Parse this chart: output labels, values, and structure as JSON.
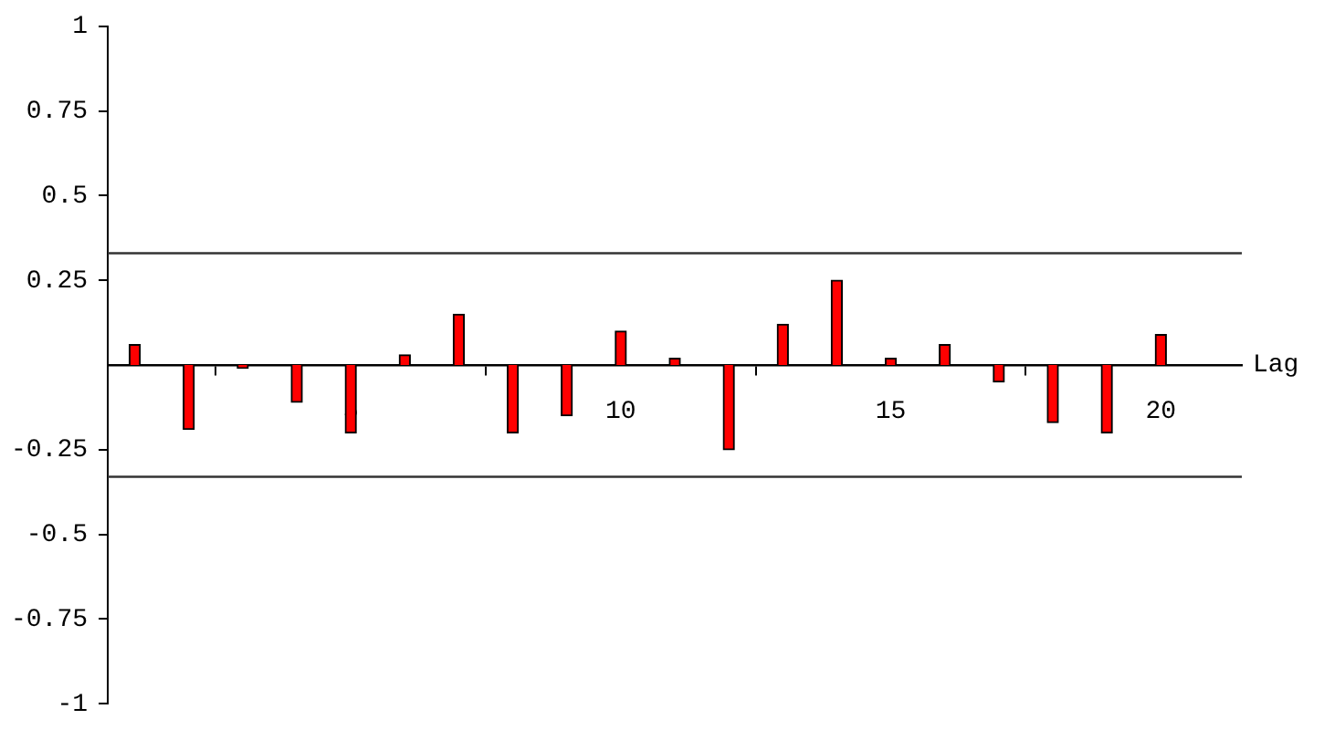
{
  "chart_data": {
    "type": "bar",
    "xlabel": "Lag",
    "x": [
      1,
      2,
      3,
      4,
      5,
      6,
      7,
      8,
      9,
      10,
      11,
      12,
      13,
      14,
      15,
      16,
      17,
      18,
      19,
      20
    ],
    "values": [
      0.06,
      -0.19,
      -0.01,
      -0.11,
      -0.2,
      0.03,
      0.15,
      -0.2,
      -0.15,
      0.1,
      0.02,
      -0.25,
      0.12,
      0.25,
      0.02,
      0.06,
      -0.05,
      -0.17,
      -0.2,
      0.09
    ],
    "color": "#ff0000",
    "xlim": [
      0.5,
      21.5
    ],
    "xticks": [
      5,
      10,
      15,
      20
    ],
    "ylim": [
      -1,
      1
    ],
    "yticks": [
      {
        "value": -1,
        "label": "-1"
      },
      {
        "value": -0.75,
        "label": "-0.75"
      },
      {
        "value": -0.5,
        "label": "-0.5"
      },
      {
        "value": -0.25,
        "label": "-0.25"
      },
      {
        "value": 0.25,
        "label": "0.25"
      },
      {
        "value": 0.5,
        "label": "0.5"
      },
      {
        "value": 0.75,
        "label": "0.75"
      },
      1
    ],
    "ref_lines": [
      {
        "axis": "y",
        "value": 0.33,
        "color": "#333333"
      },
      {
        "axis": "y",
        "value": -0.33,
        "color": "#333333"
      }
    ],
    "grid": false,
    "legend": false
  }
}
